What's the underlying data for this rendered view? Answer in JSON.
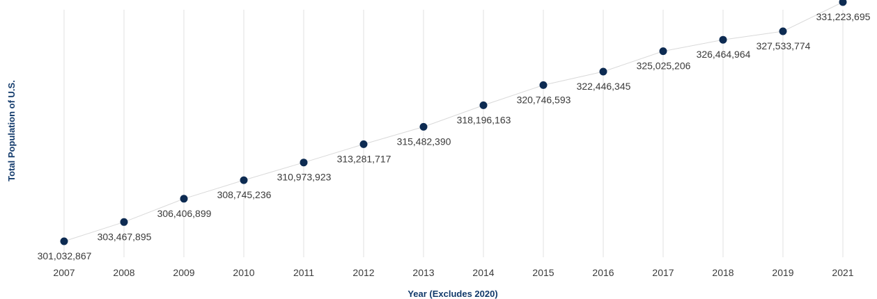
{
  "chart_data": {
    "type": "line",
    "title": "",
    "xlabel": "Year (Excludes 2020)",
    "ylabel": "Total Population of U.S.",
    "categories": [
      "2007",
      "2008",
      "2009",
      "2010",
      "2011",
      "2012",
      "2013",
      "2014",
      "2015",
      "2016",
      "2017",
      "2018",
      "2019",
      "2021"
    ],
    "series": [
      {
        "values": [
          301032867,
          303467895,
          306406899,
          308745236,
          310973923,
          313281717,
          315482390,
          318196163,
          320746593,
          322446345,
          325025206,
          326464964,
          327533774,
          331223695
        ],
        "labels": [
          "301,032,867",
          "303,467,895",
          "306,406,899",
          "308,745,236",
          "310,973,923",
          "313,281,717",
          "315,482,390",
          "318,196,163",
          "320,746,593",
          "322,446,345",
          "325,025,206",
          "326,464,964",
          "327,533,774",
          "331,223,695"
        ]
      }
    ],
    "grid": "vertical",
    "colors": {
      "point": "#0d2b52",
      "line": "#d9d9d9",
      "grid": "#e6e6e6",
      "axis_title": "#123a6b",
      "label": "#3a3a3a"
    }
  }
}
